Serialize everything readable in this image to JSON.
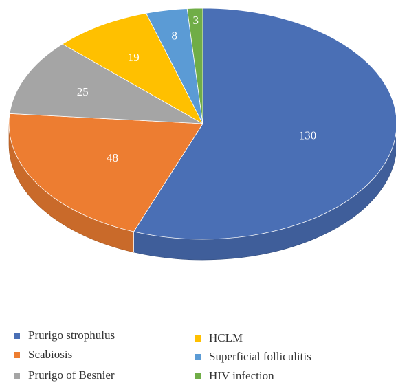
{
  "chart_data": {
    "type": "pie",
    "three_d": true,
    "categories": [
      "Prurigo strophulus",
      "Scabiosis",
      "Prurigo of Besnier",
      "HCLM",
      "Superficial folliculitis",
      "HIV infection"
    ],
    "values": [
      130,
      48,
      25,
      19,
      8,
      3
    ],
    "data_labels": [
      "130",
      "48",
      "25",
      "19",
      "8",
      "3"
    ],
    "colors": [
      "#4A6FB5",
      "#ED7D31",
      "#A5A5A5",
      "#FFC000",
      "#5B9BD5",
      "#70AD47"
    ],
    "start_angle": "12 o'clock",
    "direction": "counterclockwise",
    "title": "",
    "legend_position": "bottom",
    "legend": [
      {
        "label": "Prurigo strophulus",
        "color": "#4A6FB5"
      },
      {
        "label": "Scabiosis",
        "color": "#ED7D31"
      },
      {
        "label": "Prurigo of Besnier",
        "color": "#A5A5A5"
      },
      {
        "label": "HCLM",
        "color": "#FFC000"
      },
      {
        "label": "Superficial folliculitis",
        "color": "#5B9BD5"
      },
      {
        "label": "HIV infection",
        "color": "#70AD47"
      }
    ]
  }
}
